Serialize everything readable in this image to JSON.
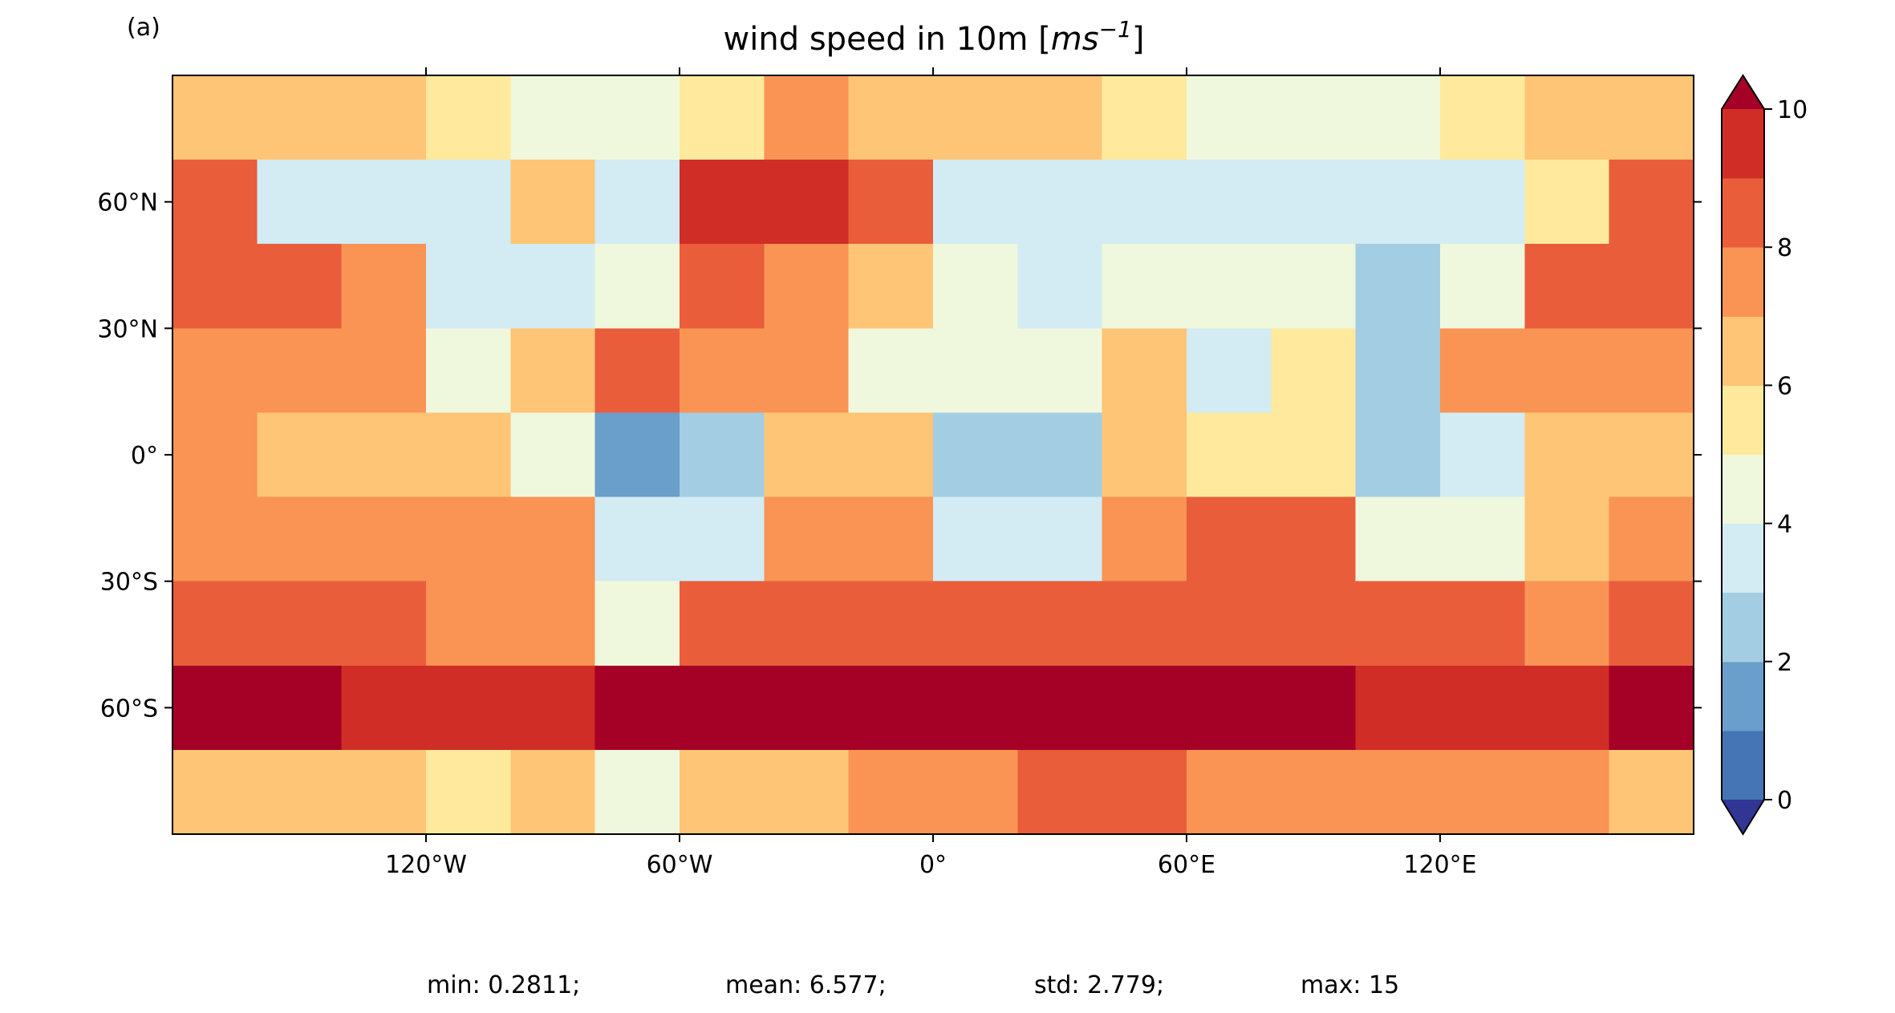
{
  "chart_data": {
    "type": "heatmap",
    "panel_label": "(a)",
    "title_parts": [
      "wind speed in 10m [",
      "ms",
      "−1",
      "]"
    ],
    "xlim": [
      -180,
      180
    ],
    "ylim": [
      -90,
      90
    ],
    "xticks": [
      {
        "value": -120,
        "label": "120°W"
      },
      {
        "value": -60,
        "label": "60°W"
      },
      {
        "value": 0,
        "label": "0°"
      },
      {
        "value": 60,
        "label": "60°E"
      },
      {
        "value": 120,
        "label": "120°E"
      }
    ],
    "yticks": [
      {
        "value": 60,
        "label": "60°N"
      },
      {
        "value": 30,
        "label": "30°N"
      },
      {
        "value": 0,
        "label": "0°"
      },
      {
        "value": -30,
        "label": "30°S"
      },
      {
        "value": -60,
        "label": "60°S"
      }
    ],
    "lon_edges": [
      -180,
      -160,
      -140,
      -120,
      -100,
      -80,
      -60,
      -40,
      -20,
      0,
      20,
      40,
      60,
      80,
      100,
      120,
      140,
      160,
      180
    ],
    "lat_edges": [
      90,
      70,
      50,
      30,
      10,
      -10,
      -30,
      -50,
      -70,
      -90
    ],
    "values": [
      [
        6.5,
        6.5,
        6,
        5,
        4,
        4.5,
        5,
        7,
        6.5,
        6.5,
        6,
        5,
        4,
        4,
        4,
        5,
        6,
        6.5
      ],
      [
        8.5,
        3,
        3,
        3,
        6,
        3,
        9.5,
        9.5,
        8,
        3,
        3,
        3,
        3,
        3,
        3,
        3.5,
        5,
        8.5
      ],
      [
        8,
        8,
        7,
        3,
        3.5,
        4,
        8,
        7,
        6.5,
        4,
        3.5,
        4,
        4,
        4.5,
        2.5,
        4,
        8.5,
        8.5
      ],
      [
        7,
        7.5,
        7,
        4,
        6,
        8,
        7.5,
        7,
        4.5,
        4.5,
        4,
        6.5,
        3,
        5,
        2.5,
        7,
        7.5,
        7.5
      ],
      [
        7,
        6.5,
        6,
        6,
        4,
        1.5,
        2.5,
        6,
        6,
        2,
        2,
        6,
        5.5,
        5,
        2.5,
        3,
        6,
        6.5
      ],
      [
        7,
        7,
        7,
        7,
        7,
        3,
        3,
        7,
        7.5,
        3,
        3.5,
        7,
        8,
        8,
        4,
        4,
        6.5,
        7
      ],
      [
        8,
        8,
        8,
        7.5,
        7,
        4,
        8,
        8,
        8,
        8,
        8,
        8,
        8.5,
        8.5,
        8.5,
        8,
        7.5,
        8
      ],
      [
        10,
        10,
        9.5,
        9.5,
        9.5,
        10,
        10.5,
        10.5,
        10.5,
        10.5,
        10.5,
        10.5,
        10,
        10,
        9.5,
        9.5,
        9.5,
        10
      ],
      [
        6,
        6,
        6,
        5.5,
        6,
        4,
        6,
        6.5,
        7,
        7.5,
        8,
        8.5,
        7.5,
        7,
        7,
        7,
        7,
        6.5
      ]
    ],
    "colorbar": {
      "levels": [
        0,
        1,
        2,
        3,
        4,
        5,
        6,
        7,
        8,
        9,
        10
      ],
      "ticks": [
        0,
        2,
        4,
        6,
        8,
        10
      ],
      "colors": [
        "#313695",
        "#4575b4",
        "#6a9ecb",
        "#a3cde3",
        "#d3ebf3",
        "#eff8dc",
        "#fee99d",
        "#fdc575",
        "#f99455",
        "#e95d3b",
        "#d02d27",
        "#a50026"
      ],
      "extend": "both"
    },
    "stats": [
      "min: 0.2811;",
      "mean: 6.577;",
      "std: 2.779;",
      "max: 15"
    ]
  }
}
